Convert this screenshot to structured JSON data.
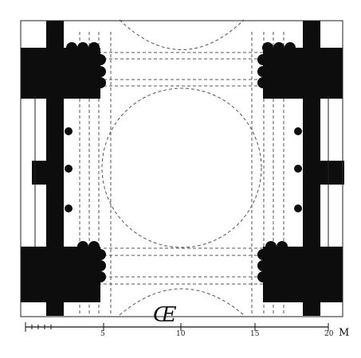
{
  "plan": {
    "signature": "Œ",
    "scale": {
      "ticks": [
        "5",
        "10",
        "15"
      ],
      "end_label": "20",
      "unit": "M"
    }
  }
}
